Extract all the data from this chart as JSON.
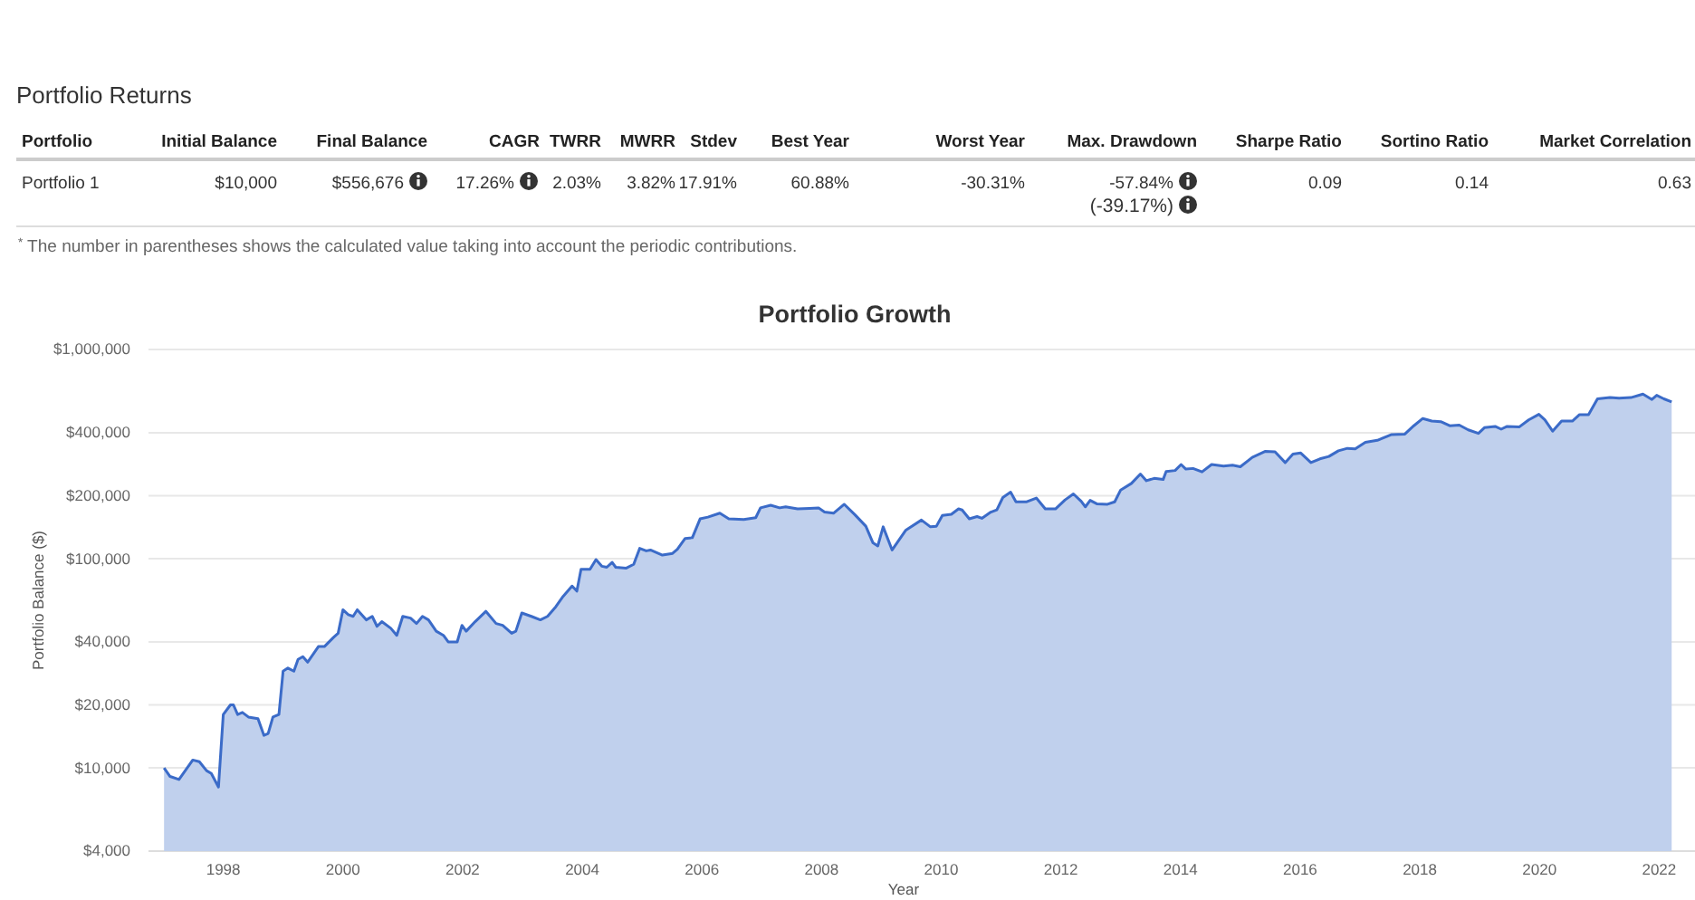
{
  "chart_data": [
    {
      "type": "other",
      "title": "Portfolio Returns",
      "categories": [
        "Portfolio",
        "Initial Balance",
        "Final Balance",
        "CAGR",
        "TWRR",
        "MWRR",
        "Stdev",
        "Best Year",
        "Worst Year",
        "Max. Drawdown",
        "Sharpe Ratio",
        "Sortino Ratio",
        "Market Correlation"
      ],
      "annotations": [
        "Portfolio 1",
        "$10,000",
        "$556,676",
        "17.26%",
        "2.03%",
        "3.82%",
        "17.91%",
        "60.88%",
        "-30.31%",
        "-57.84%",
        "0.09",
        "0.14",
        "0.63",
        "(-39.17%)",
        "$^{*}$ The number in parentheses shows the calculated value taking into account the periodic contributions."
      ]
    },
    {
      "type": "area",
      "title": "Portfolio Growth",
      "xlabel": "Year",
      "ylabel": "Portfolio Balance ($)",
      "log": "y",
      "grid": "y",
      "xlim": [
        1996.75,
        2022.6
      ],
      "xticks": [
        1998,
        2000,
        2002,
        2004,
        2006,
        2008,
        2010,
        2012,
        2014,
        2016,
        2018,
        2020,
        2022
      ],
      "ylim": [
        4000,
        1000000
      ],
      "yticks": [
        {
          "value": 4000,
          "label": "$4,000"
        },
        {
          "value": 10000,
          "label": "$10,000"
        },
        {
          "value": 20000,
          "label": "$20,000"
        },
        {
          "value": 40000,
          "label": "$40,000"
        },
        {
          "value": 100000,
          "label": "$100,000"
        },
        {
          "value": 200000,
          "label": "$200,000"
        },
        {
          "value": 400000,
          "label": "$400,000"
        },
        {
          "value": 1000000,
          "label": "$1,000,000"
        }
      ],
      "series": [
        {
          "color": "#3b6bc8",
          "x": [
            1997.01,
            1997.11,
            1997.26,
            1997.49,
            1997.6,
            1997.72,
            1997.8,
            1997.92,
            1998.0,
            1998.12,
            1998.17,
            1998.24,
            1998.32,
            1998.42,
            1998.58,
            1998.68,
            1998.75,
            1998.83,
            1998.93,
            1999.0,
            1999.08,
            1999.18,
            1999.25,
            1999.33,
            1999.41,
            1999.59,
            1999.69,
            1999.84,
            1999.92,
            2000.0,
            2000.09,
            2000.17,
            2000.24,
            2000.39,
            2000.49,
            2000.57,
            2000.65,
            2000.8,
            2000.9,
            2001.0,
            2001.13,
            2001.23,
            2001.33,
            2001.43,
            2001.56,
            2001.68,
            2001.76,
            2001.91,
            2001.99,
            2002.06,
            2002.21,
            2002.39,
            2002.56,
            2002.67,
            2002.82,
            2002.89,
            2002.99,
            2003.15,
            2003.3,
            2003.42,
            2003.56,
            2003.68,
            2003.83,
            2003.91,
            2003.98,
            2004.13,
            2004.23,
            2004.33,
            2004.41,
            2004.5,
            2004.56,
            2004.73,
            2004.86,
            2004.96,
            2005.07,
            2005.14,
            2005.34,
            2005.51,
            2005.59,
            2005.72,
            2005.84,
            2005.97,
            2006.1,
            2006.3,
            2006.45,
            2006.7,
            2006.9,
            2006.98,
            2007.15,
            2007.3,
            2007.4,
            2007.6,
            2007.8,
            2007.95,
            2008.05,
            2008.2,
            2008.38,
            2008.56,
            2008.74,
            2008.86,
            2008.94,
            2009.03,
            2009.18,
            2009.41,
            2009.67,
            2009.82,
            2009.92,
            2010.02,
            2010.17,
            2010.29,
            2010.35,
            2010.47,
            2010.6,
            2010.68,
            2010.83,
            2010.93,
            2011.03,
            2011.16,
            2011.25,
            2011.43,
            2011.59,
            2011.74,
            2011.91,
            2012.07,
            2012.21,
            2012.34,
            2012.41,
            2012.49,
            2012.6,
            2012.78,
            2012.9,
            2013.0,
            2013.18,
            2013.33,
            2013.43,
            2013.56,
            2013.71,
            2013.76,
            2013.91,
            2014.01,
            2014.09,
            2014.21,
            2014.36,
            2014.52,
            2014.72,
            2014.87,
            2015.0,
            2015.2,
            2015.42,
            2015.58,
            2015.75,
            2015.88,
            2016.01,
            2016.18,
            2016.33,
            2016.48,
            2016.64,
            2016.79,
            2016.92,
            2017.09,
            2017.29,
            2017.53,
            2017.75,
            2017.9,
            2018.05,
            2018.2,
            2018.35,
            2018.5,
            2018.66,
            2018.81,
            2018.98,
            2019.08,
            2019.26,
            2019.36,
            2019.46,
            2019.66,
            2019.82,
            2019.99,
            2020.09,
            2020.22,
            2020.37,
            2020.55,
            2020.67,
            2020.82,
            2020.97,
            2021.18,
            2021.33,
            2021.53,
            2021.73,
            2021.88,
            2021.96,
            2022.08,
            2022.21
          ],
          "values": [
            10000,
            9100,
            8800,
            10900,
            10700,
            9700,
            9400,
            8100,
            18000,
            20000,
            20000,
            18000,
            18400,
            17500,
            17200,
            14300,
            14600,
            17500,
            18000,
            29000,
            30000,
            29000,
            33000,
            34000,
            32000,
            38000,
            38000,
            42000,
            44000,
            57000,
            54000,
            53000,
            57000,
            51000,
            53000,
            47500,
            50000,
            46500,
            43000,
            53000,
            52000,
            49000,
            53000,
            51000,
            45000,
            43000,
            40000,
            40000,
            48000,
            45000,
            50000,
            56000,
            49000,
            48000,
            44000,
            45000,
            55000,
            53000,
            51000,
            53000,
            59000,
            66000,
            74000,
            70000,
            89000,
            89000,
            99000,
            92000,
            91000,
            96000,
            91000,
            90000,
            94000,
            112000,
            109000,
            110000,
            104000,
            106000,
            111000,
            125000,
            126000,
            155000,
            158000,
            165000,
            155000,
            154000,
            157000,
            175000,
            180000,
            175000,
            177000,
            173000,
            174000,
            175000,
            167000,
            165000,
            182000,
            162000,
            143000,
            119000,
            115000,
            142000,
            110000,
            137000,
            153000,
            142000,
            143000,
            161000,
            163000,
            173000,
            171000,
            155000,
            159000,
            156000,
            167000,
            171000,
            196000,
            208000,
            187000,
            187000,
            195000,
            173000,
            173000,
            191000,
            204000,
            188000,
            177000,
            190000,
            183000,
            182000,
            187000,
            213000,
            229000,
            254000,
            236000,
            242000,
            239000,
            261000,
            264000,
            282000,
            268000,
            270000,
            260000,
            282000,
            277000,
            280000,
            275000,
            305000,
            326000,
            324000,
            288000,
            316000,
            320000,
            288000,
            300000,
            308000,
            328000,
            337000,
            335000,
            360000,
            368000,
            392000,
            394000,
            432000,
            468000,
            455000,
            452000,
            432000,
            435000,
            413000,
            397000,
            423000,
            429000,
            416000,
            429000,
            426000,
            461000,
            490000,
            461000,
            407000,
            455000,
            455000,
            488000,
            488000,
            581000,
            589000,
            585000,
            589000,
            612000,
            577000,
            604000,
            581000,
            562000
          ]
        }
      ]
    }
  ]
}
